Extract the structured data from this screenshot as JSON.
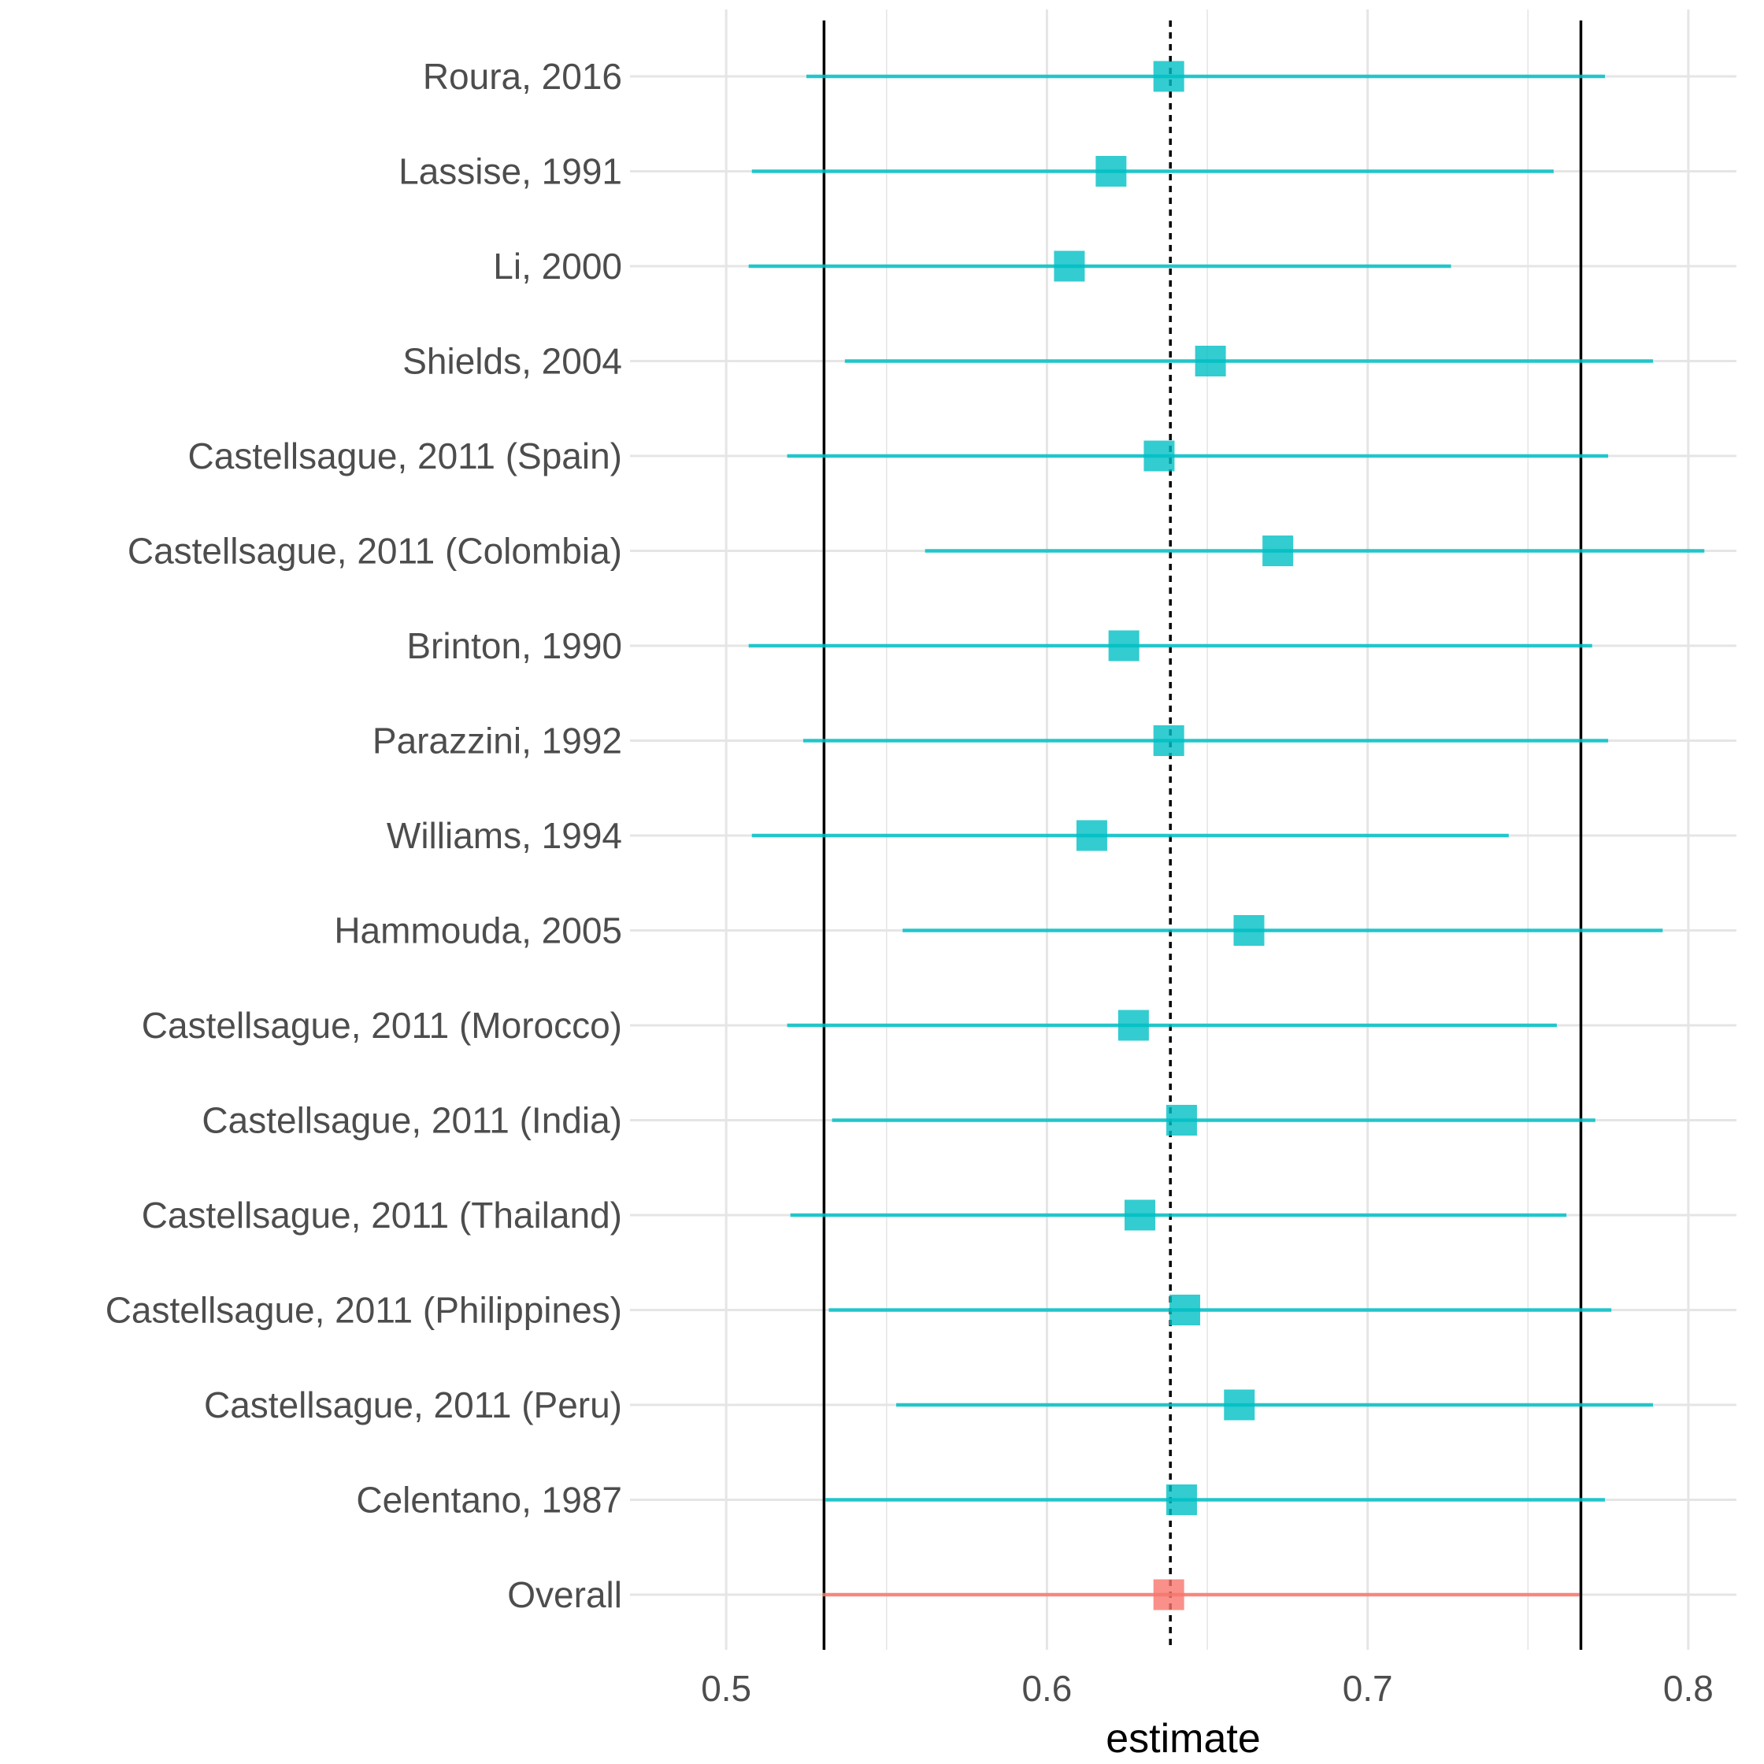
{
  "chart_data": {
    "type": "forest",
    "xlabel": "estimate",
    "xlim": [
      0.47,
      0.815
    ],
    "xticks": [
      0.5,
      0.6,
      0.7,
      0.8
    ],
    "xtick_labels": [
      "0.5",
      "0.6",
      "0.7",
      "0.8"
    ],
    "grid": true,
    "reference_lines": {
      "solid": [
        0.5305,
        0.7665
      ],
      "dotted": 0.6385
    },
    "colors": {
      "study": "#00BFC4",
      "overall": "#F8766D",
      "reference": "#000000",
      "grid": "#e5e5e5"
    },
    "rows": [
      {
        "label": "Roura, 2016",
        "estimate": 0.638,
        "lower": 0.525,
        "upper": 0.774,
        "group": "study"
      },
      {
        "label": "Lassise, 1991",
        "estimate": 0.62,
        "lower": 0.508,
        "upper": 0.758,
        "group": "study"
      },
      {
        "label": "Li, 2000",
        "estimate": 0.607,
        "lower": 0.507,
        "upper": 0.726,
        "group": "study"
      },
      {
        "label": "Shields, 2004",
        "estimate": 0.651,
        "lower": 0.537,
        "upper": 0.789,
        "group": "study"
      },
      {
        "label": "Castellsague, 2011 (Spain)",
        "estimate": 0.635,
        "lower": 0.519,
        "upper": 0.775,
        "group": "study"
      },
      {
        "label": "Castellsague, 2011 (Colombia)",
        "estimate": 0.672,
        "lower": 0.562,
        "upper": 0.805,
        "group": "study"
      },
      {
        "label": "Brinton, 1990",
        "estimate": 0.624,
        "lower": 0.507,
        "upper": 0.77,
        "group": "study"
      },
      {
        "label": "Parazzini, 1992",
        "estimate": 0.638,
        "lower": 0.524,
        "upper": 0.775,
        "group": "study"
      },
      {
        "label": "Williams, 1994",
        "estimate": 0.614,
        "lower": 0.508,
        "upper": 0.744,
        "group": "study"
      },
      {
        "label": "Hammouda, 2005",
        "estimate": 0.663,
        "lower": 0.555,
        "upper": 0.792,
        "group": "study"
      },
      {
        "label": "Castellsague, 2011 (Morocco)",
        "estimate": 0.627,
        "lower": 0.519,
        "upper": 0.759,
        "group": "study"
      },
      {
        "label": "Castellsague, 2011 (India)",
        "estimate": 0.642,
        "lower": 0.533,
        "upper": 0.771,
        "group": "study"
      },
      {
        "label": "Castellsague, 2011 (Thailand)",
        "estimate": 0.629,
        "lower": 0.52,
        "upper": 0.762,
        "group": "study"
      },
      {
        "label": "Castellsague, 2011 (Philippines)",
        "estimate": 0.643,
        "lower": 0.532,
        "upper": 0.776,
        "group": "study"
      },
      {
        "label": "Castellsague, 2011 (Peru)",
        "estimate": 0.66,
        "lower": 0.553,
        "upper": 0.789,
        "group": "study"
      },
      {
        "label": "Celentano, 1987",
        "estimate": 0.642,
        "lower": 0.531,
        "upper": 0.774,
        "group": "study"
      },
      {
        "label": "Overall",
        "estimate": 0.638,
        "lower": 0.53,
        "upper": 0.766,
        "group": "overall"
      }
    ]
  }
}
